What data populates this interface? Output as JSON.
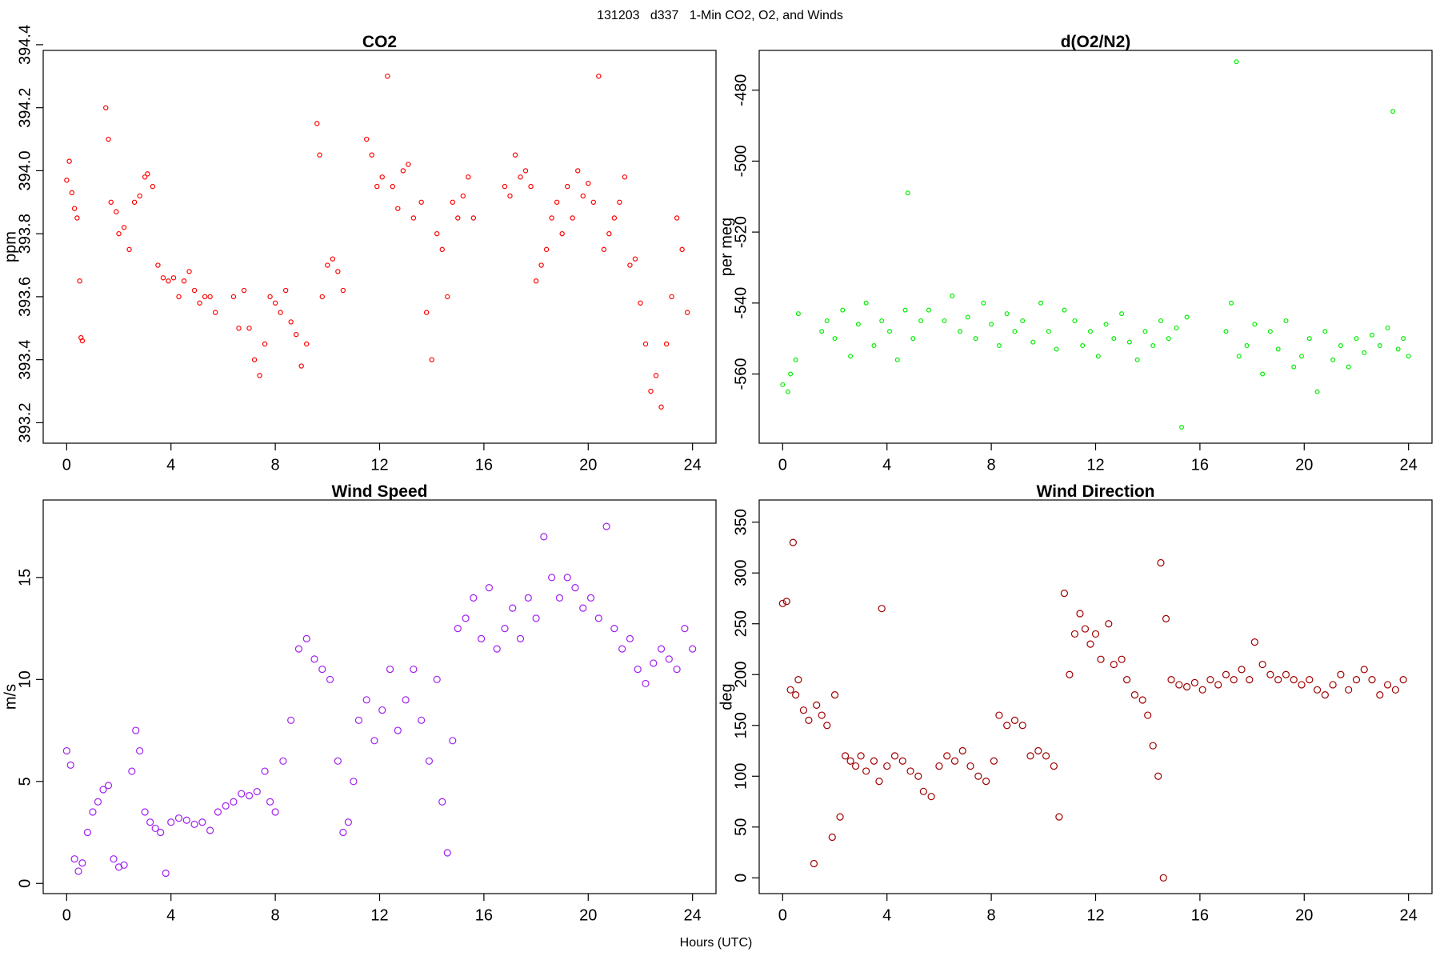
{
  "title": "131203   d337   1-Min CO2, O2, and Winds",
  "x_label": "Hours (UTC)",
  "chart_data": [
    {
      "type": "scatter",
      "title": "CO2",
      "y_label": "ppm",
      "color": "#ff0000",
      "xlim": [
        -0.9,
        24.9
      ],
      "ylim": [
        393.135,
        394.382
      ],
      "xticks": [
        0,
        4,
        8,
        12,
        16,
        20,
        24
      ],
      "yticks": [
        393.2,
        393.4,
        393.6,
        393.8,
        {
          "value": 394,
          "label": "394.0"
        },
        394.2,
        394.4
      ],
      "x": [
        0.0,
        0.1,
        0.2,
        0.3,
        0.4,
        0.5,
        0.55,
        0.6,
        1.5,
        1.6,
        1.7,
        1.9,
        2.0,
        2.2,
        2.4,
        2.6,
        2.8,
        3.0,
        3.1,
        3.3,
        3.5,
        3.7,
        3.9,
        4.1,
        4.3,
        4.5,
        4.7,
        4.9,
        5.1,
        5.3,
        5.5,
        5.7,
        6.4,
        6.6,
        6.8,
        7.0,
        7.2,
        7.4,
        7.6,
        7.8,
        8.0,
        8.2,
        8.4,
        8.6,
        8.8,
        9.0,
        9.2,
        9.6,
        9.7,
        9.8,
        10.0,
        10.2,
        10.4,
        10.6,
        11.5,
        11.7,
        11.9,
        12.1,
        12.3,
        12.5,
        12.7,
        12.9,
        13.1,
        13.3,
        13.6,
        13.8,
        14.0,
        14.2,
        14.4,
        14.6,
        14.8,
        15.0,
        15.2,
        15.4,
        15.6,
        16.8,
        17.0,
        17.2,
        17.4,
        17.6,
        17.8,
        18.0,
        18.2,
        18.4,
        18.6,
        18.8,
        19.0,
        19.2,
        19.4,
        19.6,
        19.8,
        20.0,
        20.2,
        20.4,
        20.6,
        20.8,
        21.0,
        21.2,
        21.4,
        21.6,
        21.8,
        22.0,
        22.2,
        22.4,
        22.6,
        22.8,
        23.0,
        23.2,
        23.4,
        23.6,
        23.8
      ],
      "values": [
        393.97,
        394.03,
        393.93,
        393.88,
        393.85,
        393.65,
        393.47,
        393.46,
        394.2,
        394.1,
        393.9,
        393.87,
        393.8,
        393.82,
        393.75,
        393.9,
        393.92,
        393.98,
        393.99,
        393.95,
        393.7,
        393.66,
        393.65,
        393.66,
        393.6,
        393.65,
        393.68,
        393.62,
        393.58,
        393.6,
        393.6,
        393.55,
        393.6,
        393.5,
        393.62,
        393.5,
        393.4,
        393.35,
        393.45,
        393.6,
        393.58,
        393.55,
        393.62,
        393.52,
        393.48,
        393.38,
        393.45,
        394.15,
        394.05,
        393.6,
        393.7,
        393.72,
        393.68,
        393.62,
        394.1,
        394.05,
        393.95,
        393.98,
        394.3,
        393.95,
        393.88,
        394.0,
        394.02,
        393.85,
        393.9,
        393.55,
        393.4,
        393.8,
        393.75,
        393.6,
        393.9,
        393.85,
        393.92,
        393.98,
        393.85,
        393.95,
        393.92,
        394.05,
        393.98,
        394.0,
        393.95,
        393.65,
        393.7,
        393.75,
        393.85,
        393.9,
        393.8,
        393.95,
        393.85,
        394.0,
        393.92,
        393.96,
        393.9,
        394.3,
        393.75,
        393.8,
        393.85,
        393.9,
        393.98,
        393.7,
        393.72,
        393.58,
        393.45,
        393.3,
        393.35,
        393.25,
        393.45,
        393.6,
        393.85,
        393.75,
        393.55
      ]
    },
    {
      "type": "scatter",
      "title": "d(O2/N2)",
      "y_label": "per meg",
      "color": "#00ee00",
      "xlim": [
        -0.9,
        24.9
      ],
      "ylim": [
        -579.5,
        -468.8
      ],
      "xticks": [
        0,
        4,
        8,
        12,
        16,
        20,
        24
      ],
      "yticks": [
        -560,
        -540,
        -520,
        -500,
        -480
      ],
      "x": [
        0.0,
        0.2,
        0.3,
        0.5,
        0.6,
        1.5,
        1.7,
        2.0,
        2.3,
        2.6,
        2.9,
        3.2,
        3.5,
        3.8,
        4.1,
        4.4,
        4.7,
        4.8,
        5.0,
        5.3,
        5.6,
        6.2,
        6.5,
        6.8,
        7.1,
        7.4,
        7.7,
        8.0,
        8.3,
        8.6,
        8.9,
        9.2,
        9.6,
        9.9,
        10.2,
        10.5,
        10.8,
        11.2,
        11.5,
        11.8,
        12.1,
        12.4,
        12.7,
        13.0,
        13.3,
        13.6,
        13.9,
        14.2,
        14.5,
        14.8,
        15.1,
        15.3,
        15.5,
        17.0,
        17.2,
        17.4,
        17.5,
        17.8,
        18.1,
        18.4,
        18.7,
        19.0,
        19.3,
        19.6,
        19.9,
        20.2,
        20.5,
        20.8,
        21.1,
        21.4,
        21.7,
        22.0,
        22.3,
        22.6,
        22.9,
        23.2,
        23.4,
        23.6,
        23.8,
        24.0
      ],
      "values": [
        -563,
        -565,
        -560,
        -556,
        -543,
        -548,
        -545,
        -550,
        -542,
        -555,
        -546,
        -540,
        -552,
        -545,
        -548,
        -556,
        -542,
        -509,
        -550,
        -545,
        -542,
        -545,
        -538,
        -548,
        -544,
        -550,
        -540,
        -546,
        -552,
        -543,
        -548,
        -545,
        -551,
        -540,
        -548,
        -553,
        -542,
        -545,
        -552,
        -548,
        -555,
        -546,
        -550,
        -543,
        -551,
        -556,
        -548,
        -552,
        -545,
        -550,
        -547,
        -575,
        -544,
        -548,
        -540,
        -472,
        -555,
        -552,
        -546,
        -560,
        -548,
        -553,
        -545,
        -558,
        -555,
        -550,
        -565,
        -548,
        -556,
        -552,
        -558,
        -550,
        -554,
        -549,
        -552,
        -547,
        -486,
        -553,
        -550,
        -555
      ]
    },
    {
      "type": "scatter",
      "title": "Wind Speed",
      "y_label": "m/s",
      "color": "#a020f0",
      "xlim": [
        -0.9,
        24.9
      ],
      "ylim": [
        -0.5,
        18.8
      ],
      "xticks": [
        0,
        4,
        8,
        12,
        16,
        20,
        24
      ],
      "yticks": [
        0,
        5,
        10,
        15
      ],
      "x": [
        0.0,
        0.15,
        0.3,
        0.45,
        0.6,
        0.8,
        1.0,
        1.2,
        1.4,
        1.6,
        1.8,
        2.0,
        2.2,
        2.5,
        2.65,
        2.8,
        3.0,
        3.2,
        3.4,
        3.6,
        3.8,
        4.0,
        4.3,
        4.6,
        4.9,
        5.2,
        5.5,
        5.8,
        6.1,
        6.4,
        6.7,
        7.0,
        7.3,
        7.6,
        7.8,
        8.0,
        8.3,
        8.6,
        8.9,
        9.2,
        9.5,
        9.8,
        10.1,
        10.4,
        10.6,
        10.8,
        11.0,
        11.2,
        11.5,
        11.8,
        12.1,
        12.4,
        12.7,
        13.0,
        13.3,
        13.6,
        13.9,
        14.2,
        14.4,
        14.6,
        14.8,
        15.0,
        15.3,
        15.6,
        15.9,
        16.2,
        16.5,
        16.8,
        17.1,
        17.4,
        17.7,
        18.0,
        18.3,
        18.6,
        18.9,
        19.2,
        19.5,
        19.8,
        20.1,
        20.4,
        20.7,
        21.0,
        21.3,
        21.6,
        21.9,
        22.2,
        22.5,
        22.8,
        23.1,
        23.4,
        23.7,
        24.0
      ],
      "values": [
        6.5,
        5.8,
        1.2,
        0.6,
        1.0,
        2.5,
        3.5,
        4.0,
        4.6,
        4.8,
        1.2,
        0.8,
        0.9,
        5.5,
        7.5,
        6.5,
        3.5,
        3.0,
        2.7,
        2.5,
        0.5,
        3.0,
        3.2,
        3.1,
        2.9,
        3.0,
        2.6,
        3.5,
        3.8,
        4.0,
        4.4,
        4.3,
        4.5,
        5.5,
        4.0,
        3.5,
        6.0,
        8.0,
        11.5,
        12.0,
        11.0,
        10.5,
        10.0,
        6.0,
        2.5,
        3.0,
        5.0,
        8.0,
        9.0,
        7.0,
        8.5,
        10.5,
        7.5,
        9.0,
        10.5,
        8.0,
        6.0,
        10.0,
        4.0,
        1.5,
        7.0,
        12.5,
        13.0,
        14.0,
        12.0,
        14.5,
        11.5,
        12.5,
        13.5,
        12.0,
        14.0,
        13.0,
        17.0,
        15.0,
        14.0,
        15.0,
        14.5,
        13.5,
        14.0,
        13.0,
        17.5,
        12.5,
        11.5,
        12.0,
        10.5,
        9.8,
        10.8,
        11.5,
        11.0,
        10.5,
        12.5,
        11.5
      ]
    },
    {
      "type": "scatter",
      "title": "Wind Direction",
      "y_label": "deg",
      "color": "#a00000",
      "xlim": [
        -0.9,
        24.9
      ],
      "ylim": [
        -15.5,
        371.8
      ],
      "xticks": [
        0,
        4,
        8,
        12,
        16,
        20,
        24
      ],
      "yticks": [
        0,
        50,
        100,
        150,
        200,
        250,
        300,
        350
      ],
      "x": [
        0.0,
        0.15,
        0.3,
        0.4,
        0.5,
        0.6,
        0.8,
        1.0,
        1.2,
        1.3,
        1.5,
        1.7,
        1.9,
        2.0,
        2.2,
        2.4,
        2.6,
        2.8,
        3.0,
        3.2,
        3.5,
        3.7,
        3.8,
        4.0,
        4.3,
        4.6,
        4.9,
        5.2,
        5.4,
        5.7,
        6.0,
        6.3,
        6.6,
        6.9,
        7.2,
        7.5,
        7.8,
        8.1,
        8.3,
        8.6,
        8.9,
        9.2,
        9.5,
        9.8,
        10.1,
        10.4,
        10.6,
        10.8,
        11.0,
        11.2,
        11.4,
        11.6,
        11.8,
        12.0,
        12.2,
        12.5,
        12.7,
        13.0,
        13.2,
        13.5,
        13.8,
        14.0,
        14.2,
        14.4,
        14.5,
        14.6,
        14.7,
        14.9,
        15.2,
        15.5,
        15.8,
        16.1,
        16.4,
        16.7,
        17.0,
        17.3,
        17.6,
        17.9,
        18.1,
        18.4,
        18.7,
        19.0,
        19.3,
        19.6,
        19.9,
        20.2,
        20.5,
        20.8,
        21.1,
        21.4,
        21.7,
        22.0,
        22.3,
        22.6,
        22.9,
        23.2,
        23.5,
        23.8
      ],
      "values": [
        270,
        272,
        185,
        330,
        180,
        195,
        165,
        155,
        14,
        170,
        160,
        150,
        40,
        180,
        60,
        120,
        115,
        110,
        120,
        105,
        115,
        95,
        265,
        110,
        120,
        115,
        105,
        100,
        85,
        80,
        110,
        120,
        115,
        125,
        110,
        100,
        95,
        115,
        160,
        150,
        155,
        150,
        120,
        125,
        120,
        110,
        60,
        280,
        200,
        240,
        260,
        245,
        230,
        240,
        215,
        250,
        210,
        215,
        195,
        180,
        175,
        160,
        130,
        100,
        310,
        0,
        255,
        195,
        190,
        188,
        192,
        185,
        195,
        190,
        200,
        195,
        205,
        195,
        232,
        210,
        200,
        195,
        200,
        195,
        190,
        195,
        185,
        180,
        190,
        200,
        185,
        195,
        205,
        195,
        180,
        190,
        185,
        195
      ]
    }
  ]
}
